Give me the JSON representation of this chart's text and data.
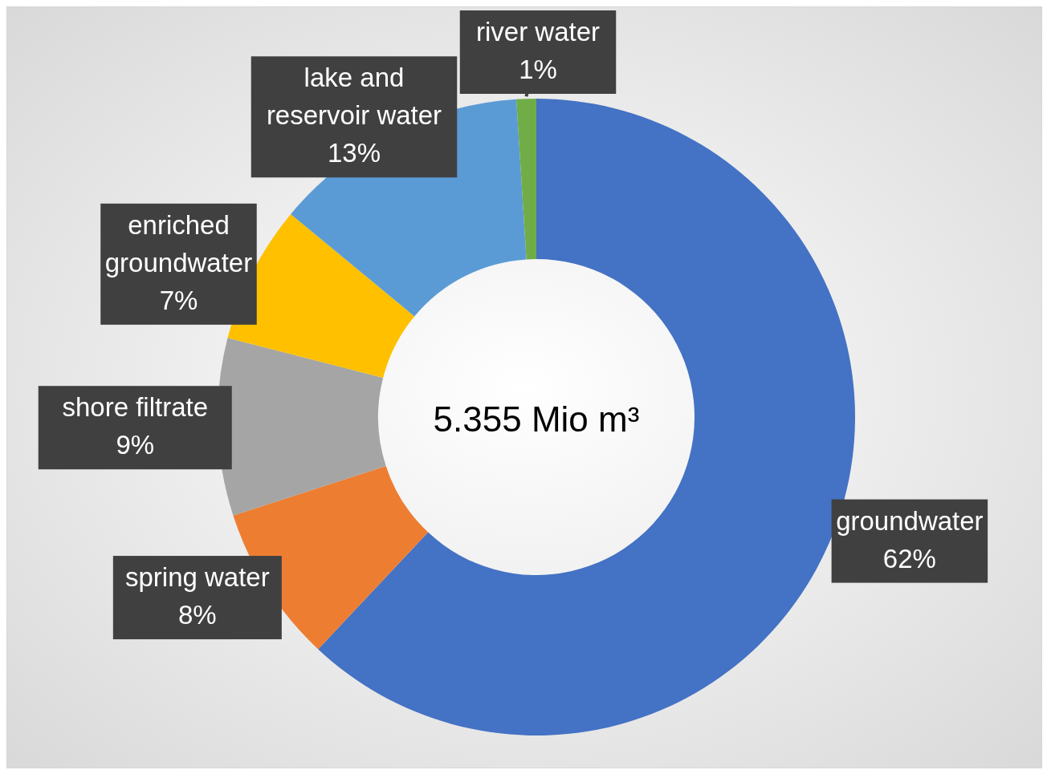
{
  "chart_data": {
    "type": "donut",
    "annotations": [
      "5.355 Mio m³"
    ],
    "categories": [
      "groundwater",
      "spring water",
      "shore filtrate",
      "enriched groundwater",
      "lake and reservoir water",
      "river water"
    ],
    "values": [
      62,
      8,
      9,
      7,
      13,
      1
    ],
    "value_labels": [
      "62%",
      "8%",
      "9%",
      "7%",
      "13%",
      "1%"
    ],
    "colors": [
      "#4472c4",
      "#ed7d31",
      "#a5a5a5",
      "#ffc000",
      "#5b9bd5",
      "#70ad47"
    ]
  }
}
